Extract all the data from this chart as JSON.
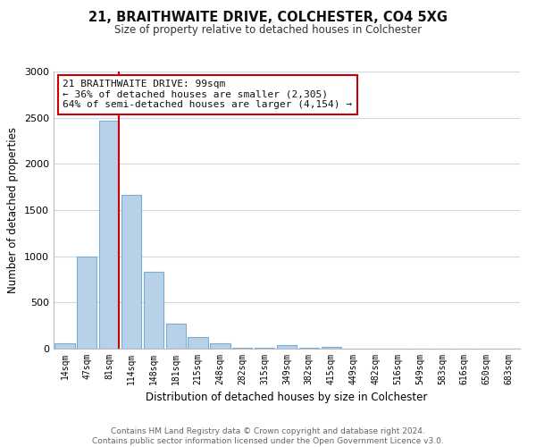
{
  "title": "21, BRAITHWAITE DRIVE, COLCHESTER, CO4 5XG",
  "subtitle": "Size of property relative to detached houses in Colchester",
  "xlabel": "Distribution of detached houses by size in Colchester",
  "ylabel": "Number of detached properties",
  "bar_labels": [
    "14sqm",
    "47sqm",
    "81sqm",
    "114sqm",
    "148sqm",
    "181sqm",
    "215sqm",
    "248sqm",
    "282sqm",
    "315sqm",
    "349sqm",
    "382sqm",
    "415sqm",
    "449sqm",
    "482sqm",
    "516sqm",
    "549sqm",
    "583sqm",
    "616sqm",
    "650sqm",
    "683sqm"
  ],
  "bar_values": [
    55,
    1000,
    2470,
    1660,
    835,
    275,
    125,
    55,
    5,
    5,
    40,
    5,
    20,
    0,
    0,
    0,
    0,
    0,
    0,
    0,
    0
  ],
  "bar_color": "#b8d0e8",
  "bar_edge_color": "#7aadd4",
  "vline_x_idx": 2,
  "vline_color": "#cc0000",
  "ylim": [
    0,
    3000
  ],
  "yticks": [
    0,
    500,
    1000,
    1500,
    2000,
    2500,
    3000
  ],
  "annotation_title": "21 BRAITHWAITE DRIVE: 99sqm",
  "annotation_line1": "← 36% of detached houses are smaller (2,305)",
  "annotation_line2": "64% of semi-detached houses are larger (4,154) →",
  "annotation_box_color": "#ffffff",
  "annotation_box_edge": "#cc0000",
  "footer_line1": "Contains HM Land Registry data © Crown copyright and database right 2024.",
  "footer_line2": "Contains public sector information licensed under the Open Government Licence v3.0.",
  "bg_color": "#ffffff",
  "grid_color": "#ccd8ec"
}
